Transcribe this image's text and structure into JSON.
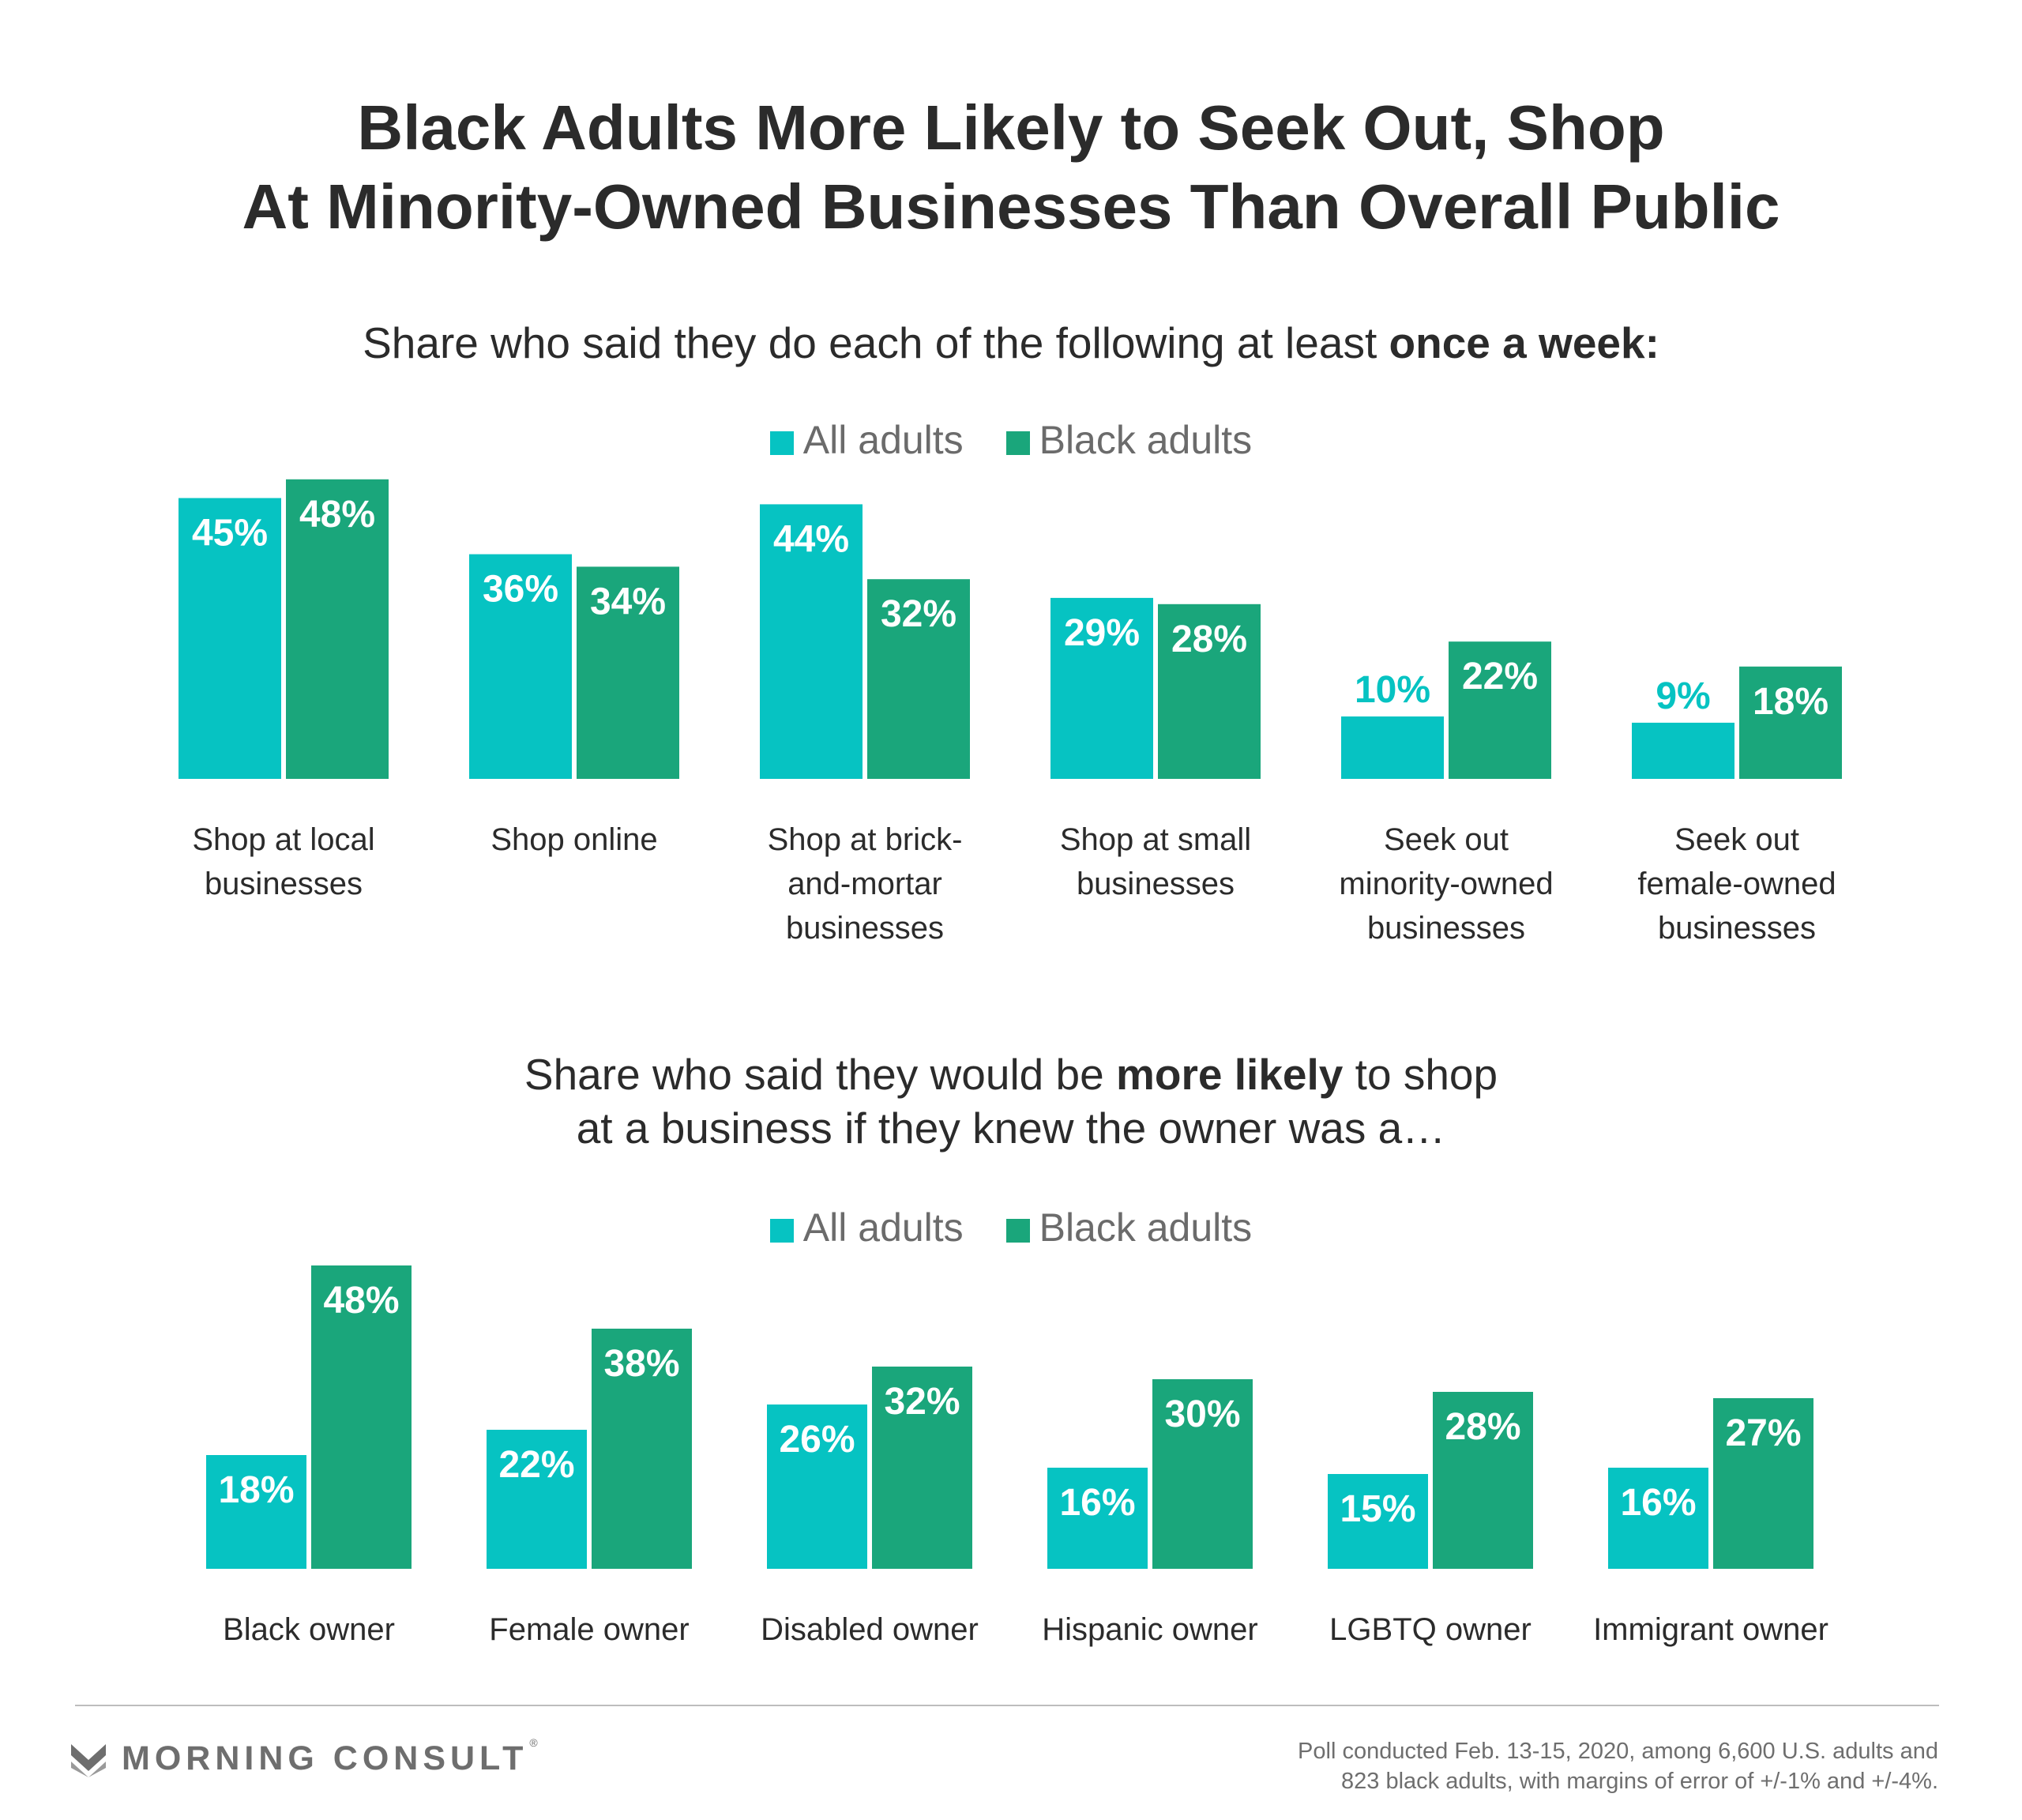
{
  "title_lines": [
    "Black Adults More Likely to Seek Out, Shop",
    "At Minority-Owned Businesses Than Overall Public"
  ],
  "colors": {
    "all": "#06c3c2",
    "black": "#1aa67b",
    "label_on_bar": "#ffffff"
  },
  "chart_data": [
    {
      "type": "bar",
      "subtitle": {
        "parts": [
          {
            "text": "Share who said they do each of the following at least ",
            "bold": false
          },
          {
            "text": "once a week:",
            "bold": true
          }
        ]
      },
      "legend": [
        "All adults",
        "Black adults"
      ],
      "categories": [
        [
          "Shop at local",
          "businesses"
        ],
        [
          "Shop online"
        ],
        [
          "Shop at brick-",
          "and-mortar",
          "businesses"
        ],
        [
          "Shop at small",
          "businesses"
        ],
        [
          "Seek out",
          "minority-owned",
          "businesses"
        ],
        [
          "Seek out",
          "female-owned",
          "businesses"
        ]
      ],
      "series": [
        {
          "name": "All adults",
          "values": [
            45,
            36,
            44,
            29,
            10,
            9
          ]
        },
        {
          "name": "Black adults",
          "values": [
            48,
            34,
            32,
            28,
            22,
            18
          ]
        }
      ],
      "value_suffix": "%"
    },
    {
      "type": "bar",
      "subtitle": {
        "lines": [
          [
            {
              "text": "Share who said they would be ",
              "bold": false
            },
            {
              "text": "more likely",
              "bold": true
            },
            {
              "text": " to shop",
              "bold": false
            }
          ],
          [
            {
              "text": "at a business if they knew the owner was a…",
              "bold": false
            }
          ]
        ]
      },
      "legend": [
        "All adults",
        "Black adults"
      ],
      "categories": [
        [
          "Black owner"
        ],
        [
          "Female owner"
        ],
        [
          "Disabled owner"
        ],
        [
          "Hispanic owner"
        ],
        [
          "LGBTQ owner"
        ],
        [
          "Immigrant owner"
        ]
      ],
      "series": [
        {
          "name": "All adults",
          "values": [
            18,
            22,
            26,
            16,
            15,
            16
          ]
        },
        {
          "name": "Black adults",
          "values": [
            48,
            38,
            32,
            30,
            28,
            27
          ]
        }
      ],
      "value_suffix": "%"
    }
  ],
  "footer": {
    "brand": "MORNING CONSULT",
    "brand_mark": "®",
    "logo_icon": "morning-consult-m-icon",
    "note_lines": [
      "Poll conducted Feb. 13-15, 2020, among 6,600 U.S. adults and",
      "823 black adults, with margins of error of +/-1% and +/-4%."
    ]
  }
}
